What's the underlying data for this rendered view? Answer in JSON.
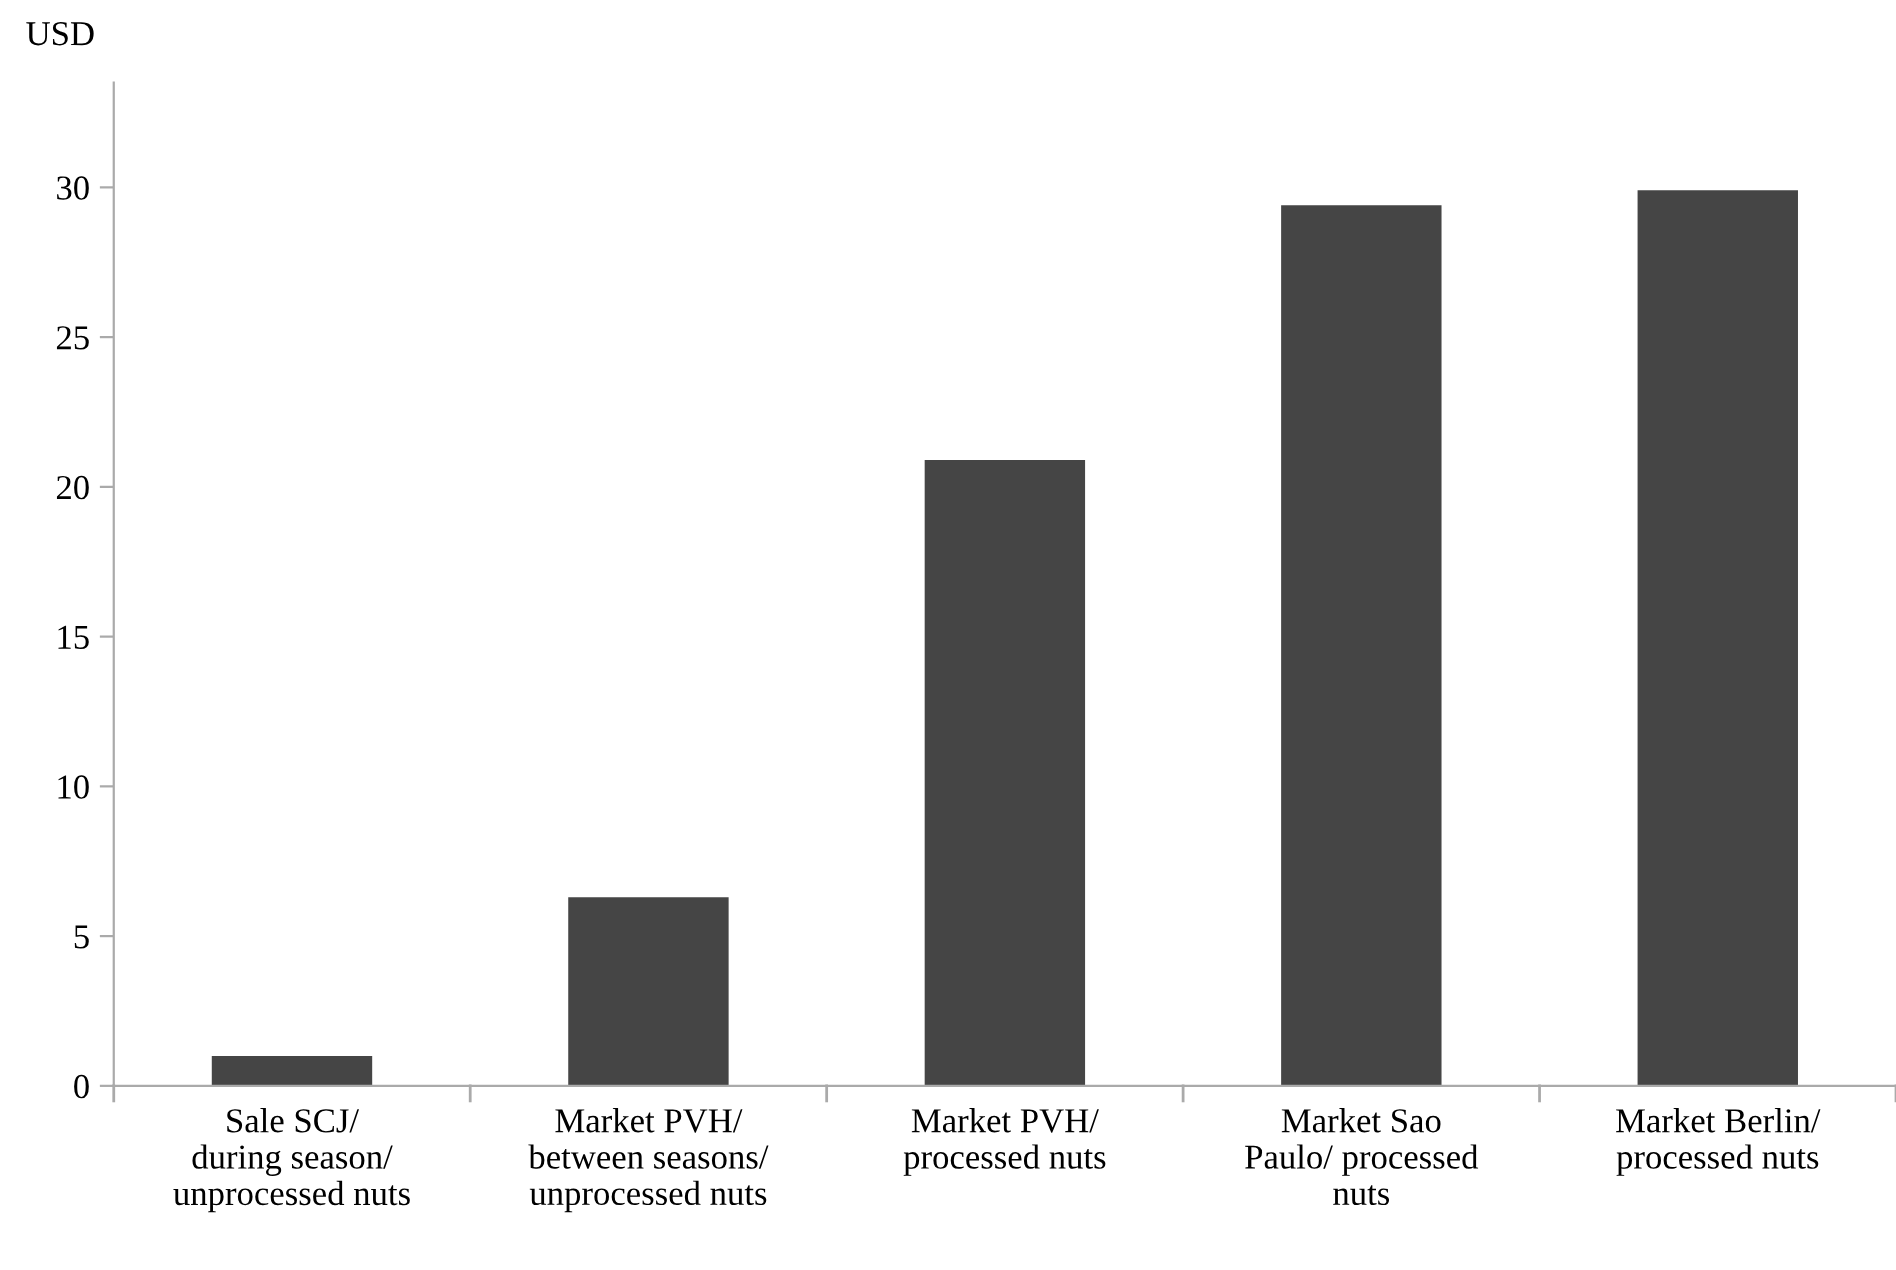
{
  "chart_data": {
    "type": "bar",
    "ylabel": "USD",
    "categories": [
      "Sale SCJ/\nduring season/\nunprocessed nuts",
      "Market PVH/\nbetween seasons/\nunprocessed nuts",
      "Market PVH/\nprocessed nuts",
      "Market Sao\nPaulo/ processed\nnuts",
      "Market Berlin/\nprocessed nuts"
    ],
    "values": [
      1.0,
      6.3,
      20.9,
      29.4,
      29.9
    ],
    "color": "#454545",
    "ylim": [
      0,
      33.5
    ],
    "yticks": [
      0,
      5,
      10,
      15,
      20,
      25,
      30
    ],
    "grid": false
  }
}
